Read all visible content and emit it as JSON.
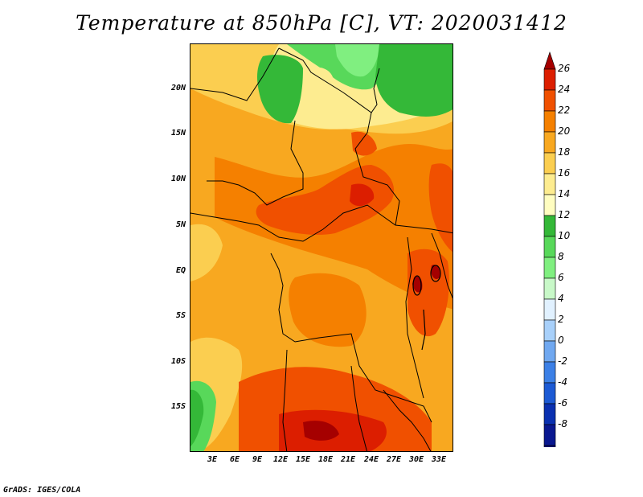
{
  "title": "Temperature at 850hPa [C], VT: 2020031412",
  "credit": "GrADS: IGES/COLA",
  "axes": {
    "y_labels": [
      "20N",
      "15N",
      "10N",
      "5N",
      "EQ",
      "5S",
      "10S",
      "15S"
    ],
    "x_labels": [
      "3E",
      "6E",
      "9E",
      "12E",
      "15E",
      "18E",
      "21E",
      "24E",
      "27E",
      "30E",
      "33E"
    ]
  },
  "colorbar": {
    "labels": [
      "26",
      "24",
      "22",
      "20",
      "18",
      "16",
      "14",
      "12",
      "10",
      "8",
      "6",
      "4",
      "2",
      "0",
      "-2",
      "-4",
      "-6",
      "-8"
    ],
    "colors": [
      "#a50000",
      "#dc1e00",
      "#f05000",
      "#f58000",
      "#f8a820",
      "#fbce50",
      "#fdec90",
      "#fffdc0",
      "#34b838",
      "#58d85a",
      "#80ef80",
      "#c8f8c8",
      "#e1f1ff",
      "#a8d0fa",
      "#70a8f0",
      "#3c80e6",
      "#1c5ad4",
      "#0a30b0",
      "#0a1890",
      "#080a6e",
      "#d8d8f0"
    ]
  }
}
